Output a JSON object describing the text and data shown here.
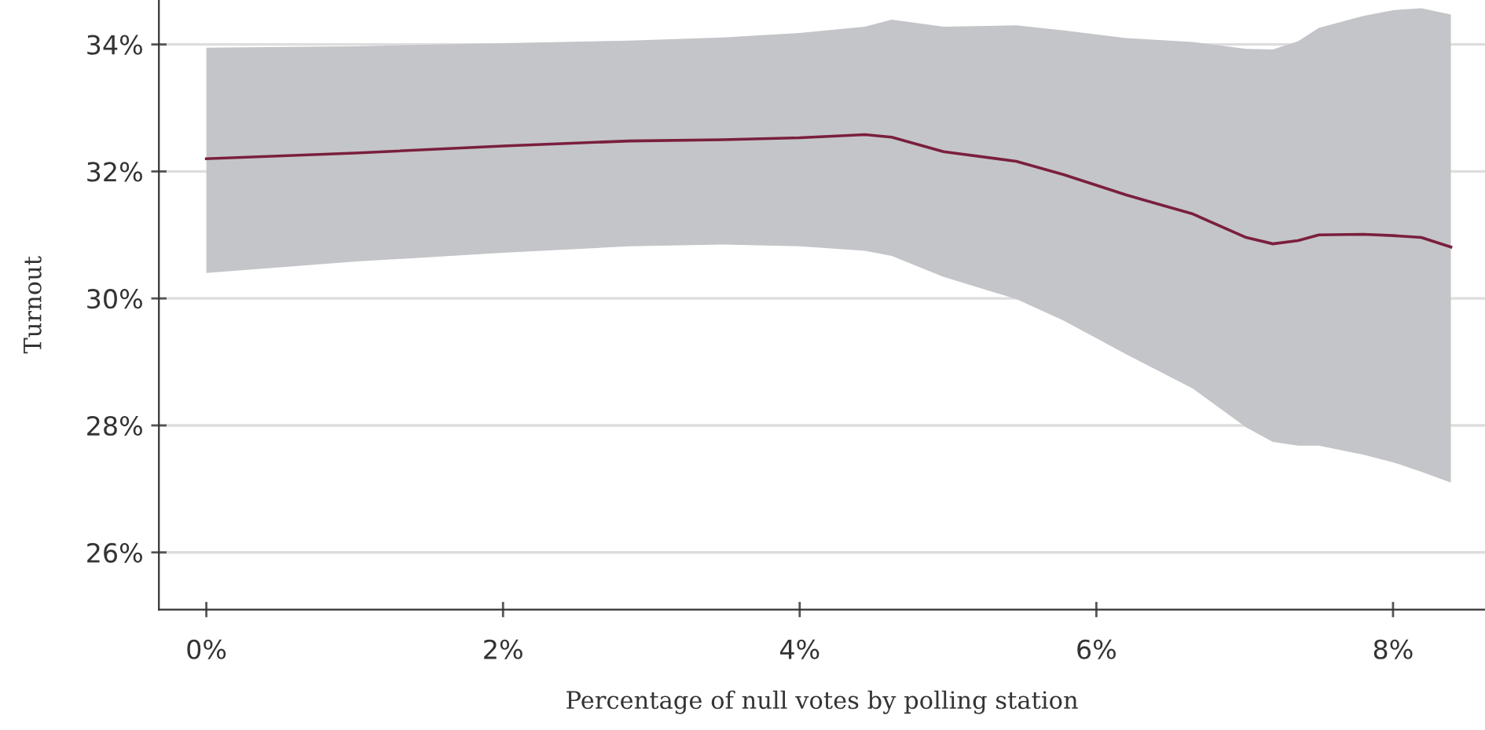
{
  "chart_data": {
    "type": "line",
    "xlabel": "Percentage of null votes by polling station",
    "ylabel": "Turnout",
    "series": [
      {
        "color": "#7a1f3d",
        "x": [
          0,
          1,
          2,
          2.85,
          3.48,
          4.0,
          4.44,
          4.62,
          4.97,
          5.46,
          5.78,
          6.2,
          6.65,
          7.01,
          7.19,
          7.36,
          7.5,
          7.8,
          8.0,
          8.19,
          8.39
        ],
        "values": [
          32.2,
          32.29,
          32.4,
          32.48,
          32.5,
          32.53,
          32.58,
          32.54,
          32.31,
          32.16,
          31.95,
          31.63,
          31.33,
          30.96,
          30.86,
          30.91,
          31.0,
          31.01,
          30.99,
          30.96,
          30.81
        ],
        "upper": [
          33.95,
          33.97,
          34.02,
          34.06,
          34.11,
          34.18,
          34.28,
          34.39,
          34.28,
          34.3,
          34.22,
          34.1,
          34.04,
          33.93,
          33.92,
          34.05,
          34.26,
          34.45,
          34.54,
          34.57,
          34.47
        ],
        "lower": [
          30.4,
          30.58,
          30.72,
          30.82,
          30.85,
          30.82,
          30.75,
          30.67,
          30.34,
          29.99,
          29.65,
          29.12,
          28.58,
          27.97,
          27.74,
          27.68,
          27.68,
          27.54,
          27.42,
          27.27,
          27.1
        ]
      }
    ],
    "xlim": [
      -0.32,
      8.62
    ],
    "ylim": [
      25.1,
      34.7
    ],
    "xticks": [
      {
        "value": 0,
        "label": "0%"
      },
      {
        "value": 2,
        "label": "2%"
      },
      {
        "value": 4,
        "label": "4%"
      },
      {
        "value": 6,
        "label": "6%"
      },
      {
        "value": 8,
        "label": "8%"
      }
    ],
    "yticks": [
      {
        "value": 26,
        "label": "26%"
      },
      {
        "value": 28,
        "label": "28%"
      },
      {
        "value": 30,
        "label": "30%"
      },
      {
        "value": 32,
        "label": "32%"
      },
      {
        "value": 34,
        "label": "34%"
      }
    ],
    "grid": "y",
    "marker": "none",
    "line_style": "solid",
    "legend": false
  }
}
